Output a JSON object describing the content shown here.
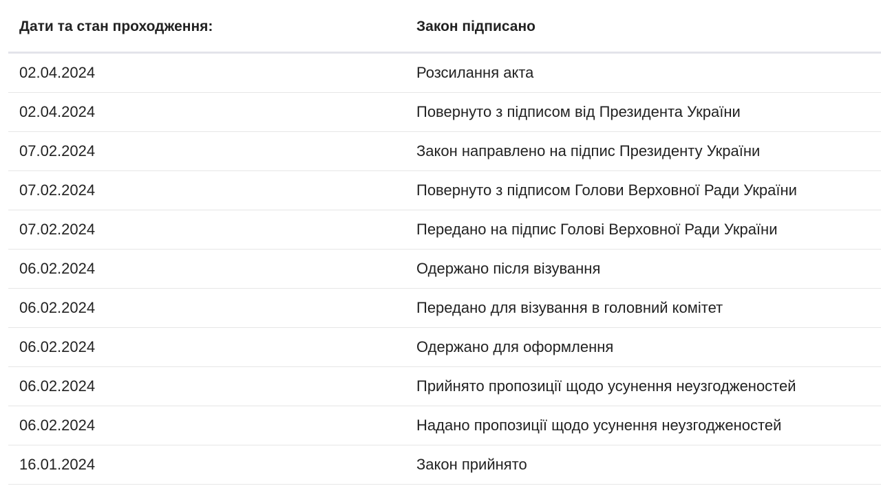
{
  "table": {
    "header": {
      "dates": "Дати та стан проходження:",
      "status": "Закон підписано"
    },
    "rows": [
      {
        "date": "02.04.2024",
        "event": "Розсилання акта"
      },
      {
        "date": "02.04.2024",
        "event": "Повернуто з підписом від Президента України"
      },
      {
        "date": "07.02.2024",
        "event": "Закон направлено на підпис Президенту України"
      },
      {
        "date": "07.02.2024",
        "event": "Повернуто з підписом Голови Верховної Ради України"
      },
      {
        "date": "07.02.2024",
        "event": "Передано на підпис Голові Верховної Ради України"
      },
      {
        "date": "06.02.2024",
        "event": "Одержано після візування"
      },
      {
        "date": "06.02.2024",
        "event": "Передано для візування в головний комітет"
      },
      {
        "date": "06.02.2024",
        "event": "Одержано для оформлення"
      },
      {
        "date": "06.02.2024",
        "event": "Прийнято пропозиції щодо усунення неузгодженостей"
      },
      {
        "date": "06.02.2024",
        "event": "Надано пропозиції щодо усунення неузгодженостей"
      },
      {
        "date": "16.01.2024",
        "event": "Закон прийнято"
      }
    ]
  }
}
